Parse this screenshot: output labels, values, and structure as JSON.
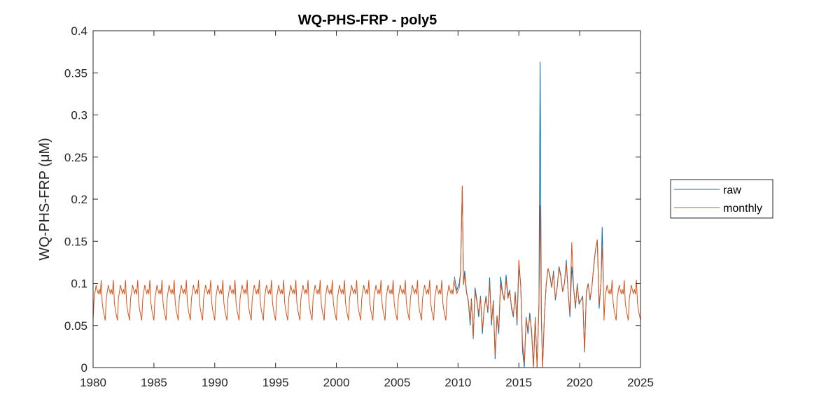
{
  "chart_data": {
    "type": "line",
    "title": "WQ-PHS-FRP - poly5",
    "xlabel": "",
    "ylabel": "WQ-PHS-FRP (μM)",
    "xlim": [
      1980,
      2025
    ],
    "ylim": [
      0,
      0.4
    ],
    "xticks": [
      "1980",
      "1985",
      "1990",
      "1995",
      "2000",
      "2005",
      "2010",
      "2015",
      "2020",
      "2025"
    ],
    "yticks": [
      "0",
      "0.05",
      "0.1",
      "0.15",
      "0.2",
      "0.25",
      "0.3",
      "0.35",
      "0.4"
    ],
    "grid": false,
    "legend_position": "outside-right",
    "seasonal_cycle": {
      "description": "monthly climatology repeated each year (Jan..Dec)",
      "values": [
        0.056,
        0.082,
        0.09,
        0.098,
        0.092,
        0.088,
        0.093,
        0.087,
        0.104,
        0.077,
        0.068,
        0.062
      ]
    },
    "series": [
      {
        "name": "raw",
        "color": "#0072BD",
        "x": [
          2009.7,
          2009.9,
          2010.1,
          2010.2,
          2010.35,
          2010.45,
          2010.55,
          2010.7,
          2010.85,
          2011.0,
          2011.1,
          2011.25,
          2011.4,
          2011.55,
          2011.7,
          2011.85,
          2012.0,
          2012.15,
          2012.3,
          2012.45,
          2012.6,
          2012.75,
          2012.9,
          2013.05,
          2013.2,
          2013.35,
          2013.5,
          2013.65,
          2013.8,
          2013.95,
          2014.1,
          2014.25,
          2014.4,
          2014.55,
          2014.7,
          2014.85,
          2015.0,
          2015.15,
          2015.3,
          2015.45,
          2015.6,
          2015.75,
          2015.9,
          2016.05,
          2016.2,
          2016.35,
          2016.5,
          2016.65,
          2016.75,
          2016.85,
          2016.95,
          2017.1,
          2017.25,
          2017.4,
          2017.55,
          2017.7,
          2017.85,
          2018.0,
          2018.15,
          2018.3,
          2018.45,
          2018.6,
          2018.75,
          2018.9,
          2019.05,
          2019.2,
          2019.35,
          2019.5,
          2019.65,
          2019.8,
          2019.95,
          2020.1,
          2020.25,
          2020.4,
          2020.55,
          2020.7,
          2020.85,
          2021.0,
          2021.15,
          2021.3,
          2021.45,
          2021.6,
          2021.75,
          2021.85,
          2021.95
        ],
        "values": [
          0.108,
          0.092,
          0.1,
          0.112,
          0.215,
          0.1,
          0.115,
          0.09,
          0.078,
          0.05,
          0.082,
          0.034,
          0.095,
          0.08,
          0.06,
          0.085,
          0.04,
          0.07,
          0.085,
          0.065,
          0.107,
          0.05,
          0.08,
          0.01,
          0.06,
          0.04,
          0.108,
          0.09,
          0.08,
          0.11,
          0.085,
          0.092,
          0.07,
          0.06,
          0.09,
          0.05,
          0.12,
          0.1,
          0.02,
          0.0,
          0.06,
          0.04,
          0.065,
          0.04,
          0.0,
          0.06,
          0.0,
          0.075,
          0.363,
          0.06,
          0.0,
          0.06,
          0.1,
          0.117,
          0.11,
          0.095,
          0.115,
          0.08,
          0.095,
          0.12,
          0.11,
          0.09,
          0.1,
          0.128,
          0.09,
          0.06,
          0.12,
          0.095,
          0.07,
          0.1,
          0.075,
          0.08,
          0.085,
          0.018,
          0.09,
          0.1,
          0.08,
          0.095,
          0.12,
          0.14,
          0.15,
          0.07,
          0.1,
          0.167,
          0.1
        ]
      },
      {
        "name": "monthly",
        "color": "#D95319",
        "x": [
          2009.7,
          2009.9,
          2010.1,
          2010.2,
          2010.35,
          2010.45,
          2010.55,
          2010.7,
          2010.85,
          2011.0,
          2011.1,
          2011.25,
          2011.4,
          2011.55,
          2011.7,
          2011.85,
          2012.0,
          2012.15,
          2012.3,
          2012.45,
          2012.6,
          2012.75,
          2012.9,
          2013.05,
          2013.2,
          2013.35,
          2013.5,
          2013.65,
          2013.8,
          2013.95,
          2014.1,
          2014.25,
          2014.4,
          2014.55,
          2014.7,
          2014.85,
          2015.0,
          2015.15,
          2015.3,
          2015.45,
          2015.6,
          2015.75,
          2015.9,
          2016.05,
          2016.2,
          2016.35,
          2016.5,
          2016.65,
          2016.75,
          2016.85,
          2016.95,
          2017.1,
          2017.25,
          2017.4,
          2017.55,
          2017.7,
          2017.85,
          2018.0,
          2018.15,
          2018.3,
          2018.45,
          2018.6,
          2018.75,
          2018.9,
          2019.05,
          2019.2,
          2019.35,
          2019.5,
          2019.65,
          2019.8,
          2019.95,
          2020.1,
          2020.25,
          2020.4,
          2020.55,
          2020.7,
          2020.85,
          2021.0,
          2021.15,
          2021.3,
          2021.45,
          2021.6,
          2021.75,
          2021.85,
          2021.95
        ],
        "values": [
          0.1,
          0.088,
          0.095,
          0.11,
          0.216,
          0.098,
          0.11,
          0.088,
          0.08,
          0.055,
          0.08,
          0.036,
          0.09,
          0.078,
          0.065,
          0.083,
          0.045,
          0.07,
          0.082,
          0.068,
          0.1,
          0.055,
          0.078,
          0.015,
          0.062,
          0.045,
          0.1,
          0.088,
          0.08,
          0.105,
          0.082,
          0.09,
          0.072,
          0.062,
          0.088,
          0.055,
          0.128,
          0.098,
          0.03,
          0.005,
          0.058,
          0.045,
          0.06,
          0.045,
          0.0,
          0.058,
          0.0,
          0.072,
          0.193,
          0.062,
          0.0,
          0.062,
          0.098,
          0.118,
          0.108,
          0.095,
          0.112,
          0.082,
          0.095,
          0.118,
          0.108,
          0.09,
          0.1,
          0.124,
          0.09,
          0.065,
          0.149,
          0.095,
          0.072,
          0.098,
          0.078,
          0.08,
          0.083,
          0.02,
          0.088,
          0.1,
          0.082,
          0.095,
          0.118,
          0.14,
          0.152,
          0.075,
          0.1,
          0.145,
          0.1
        ]
      }
    ]
  }
}
